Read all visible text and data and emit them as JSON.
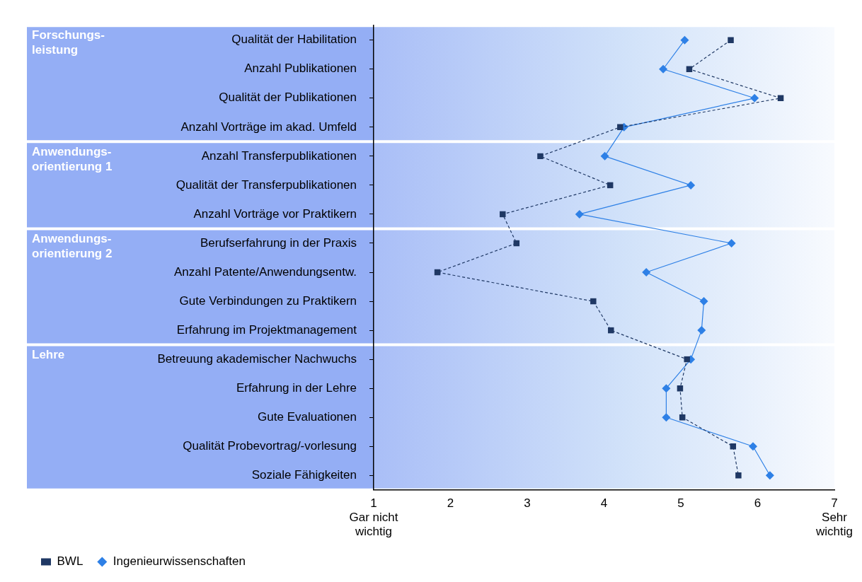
{
  "chart_data": {
    "type": "line",
    "orientation": "horizontal",
    "categories": [
      "Qualität der Habilitation",
      "Anzahl Publikationen",
      "Qualität der Publikationen",
      "Anzahl Vorträge im akad. Umfeld",
      "Anzahl Transferpublikationen",
      "Qualität der Transferpublikationen",
      "Anzahl Vorträge vor Praktikern",
      "Berufserfahrung in der Praxis",
      "Anzahl Patente/Anwendungsentw.",
      "Gute Verbindungen zu Praktikern",
      "Erfahrung im Projektmanagement",
      "Betreuung akademischer Nachwuchs",
      "Erfahrung in der Lehre",
      "Gute Evaluationen",
      "Qualität Probevortrag/-vorlesung",
      "Soziale Fähigkeiten"
    ],
    "series": [
      {
        "name": "BWL",
        "color": "#1f3864",
        "marker": "square",
        "line_style": "dashed",
        "values": [
          5.65,
          5.11,
          6.3,
          4.21,
          3.17,
          4.08,
          2.68,
          2.86,
          1.83,
          3.86,
          4.09,
          5.08,
          4.99,
          5.02,
          5.68,
          5.75
        ]
      },
      {
        "name": "Ingenieurwissenschaften",
        "color": "#2e80e6",
        "marker": "diamond",
        "line_style": "solid",
        "values": [
          5.05,
          4.77,
          5.96,
          4.26,
          4.01,
          5.13,
          3.68,
          5.66,
          4.55,
          5.3,
          5.27,
          5.13,
          4.81,
          4.81,
          5.94,
          6.16
        ]
      }
    ],
    "xlim": [
      1,
      7
    ],
    "xticks": [
      {
        "value": 1,
        "label": "1\nGar nicht\nwichtig"
      },
      2,
      3,
      4,
      5,
      6,
      {
        "value": 7,
        "label": "7\nSehr\nwichtig"
      }
    ],
    "bands": [
      {
        "axis": "y",
        "from": "Qualität der Habilitation",
        "to": "Anzahl Vorträge im akad. Umfeld",
        "color": "#94aef5"
      },
      {
        "axis": "y",
        "from": "Anzahl Transferpublikationen",
        "to": "Anzahl Vorträge vor Praktikern",
        "color": "#94aef5"
      },
      {
        "axis": "y",
        "from": "Berufserfahrung in der Praxis",
        "to": "Erfahrung im Projektmanagement",
        "color": "#94aef5"
      },
      {
        "axis": "y",
        "from": "Betreuung akademischer Nachwuchs",
        "to": "Soziale Fähigkeiten",
        "color": "#94aef5"
      }
    ],
    "annotations": [
      "Forschungs-\nleistung",
      "Anwendungs-\norientierung 1",
      "Anwendungs-\norientierung 2",
      "Lehre"
    ],
    "grid": false,
    "legend": "bottom left"
  }
}
